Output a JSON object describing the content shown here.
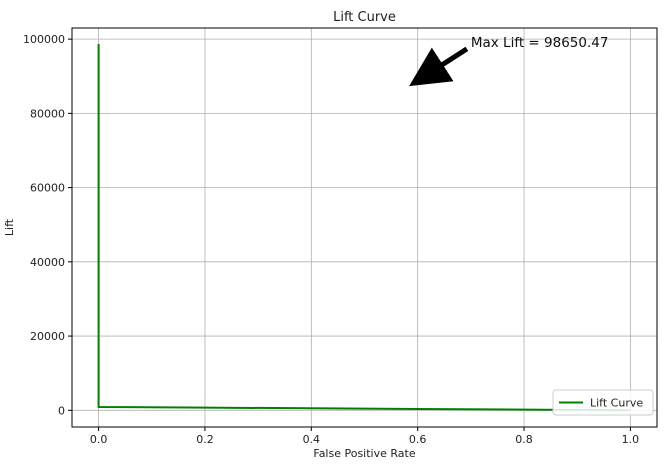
{
  "chart_data": {
    "type": "line",
    "title": "Lift Curve",
    "xlabel": "False Positive Rate",
    "ylabel": "Lift",
    "xlim": [
      -0.05,
      1.05
    ],
    "ylim": [
      -4500,
      103000
    ],
    "xticks": [
      0.0,
      0.2,
      0.4,
      0.6,
      0.8,
      1.0
    ],
    "xtick_labels": [
      "0.0",
      "0.2",
      "0.4",
      "0.6",
      "0.8",
      "1.0"
    ],
    "yticks": [
      0,
      20000,
      40000,
      60000,
      80000,
      100000
    ],
    "ytick_labels": [
      "0",
      "20000",
      "40000",
      "60000",
      "80000",
      "100000"
    ],
    "grid": true,
    "legend_position": "bottom-right",
    "series": [
      {
        "name": "Lift Curve",
        "color": "#008000",
        "x": [
          0.0,
          0.0,
          0.0,
          0.2,
          0.4,
          0.6,
          0.8,
          1.0
        ],
        "y": [
          98650.47,
          20000,
          900,
          720,
          540,
          360,
          180,
          0
        ]
      }
    ],
    "annotations": [
      {
        "text": "Max Lift = 98650.47",
        "xy": [
          0.6,
          89000
        ],
        "xytext": [
          0.7,
          99000
        ]
      }
    ]
  }
}
